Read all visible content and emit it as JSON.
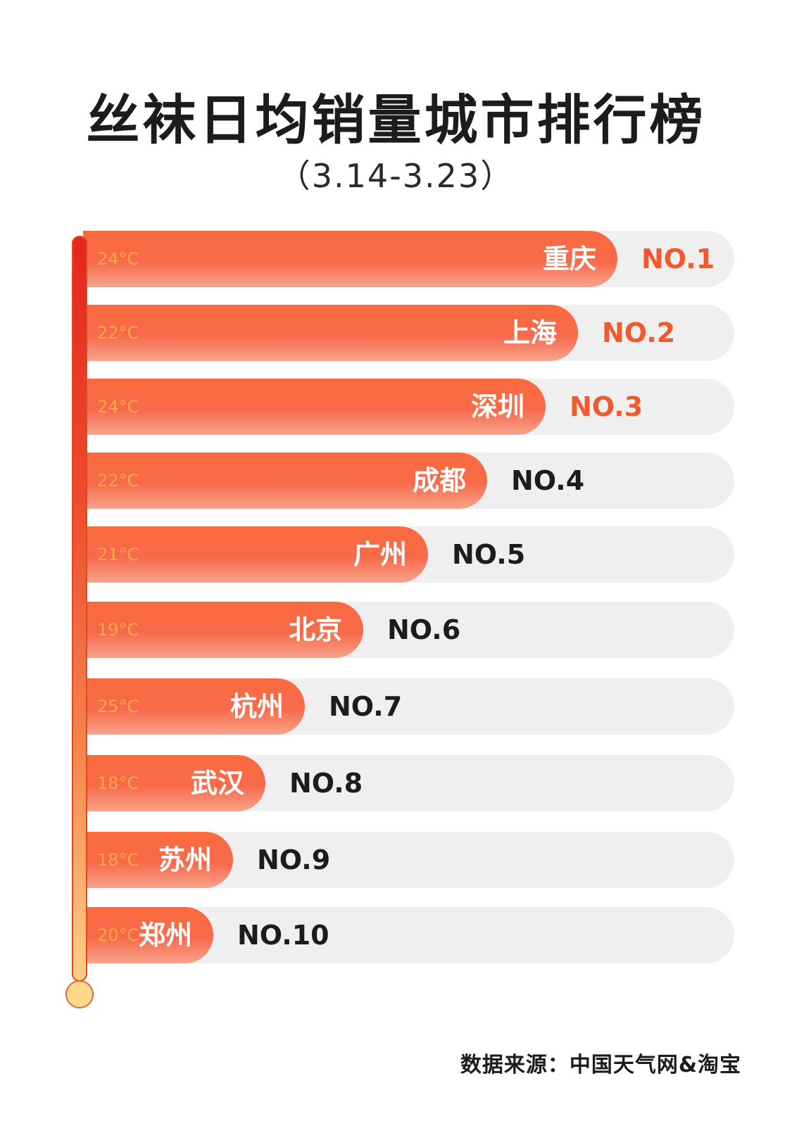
{
  "chart_data": {
    "type": "bar",
    "orientation": "horizontal",
    "title": "丝袜日均销量城市排行榜",
    "subtitle": "（3.14-3.23）",
    "categories": [
      "重庆",
      "上海",
      "深圳",
      "成都",
      "广州",
      "北京",
      "杭州",
      "武汉",
      "苏州",
      "郑州"
    ],
    "ranks": [
      "NO.1",
      "NO.2",
      "NO.3",
      "NO.4",
      "NO.5",
      "NO.6",
      "NO.7",
      "NO.8",
      "NO.9",
      "NO.10"
    ],
    "temperatures": [
      "24°C",
      "22°C",
      "24°C",
      "22°C",
      "21°C",
      "19°C",
      "25°C",
      "18°C",
      "18°C",
      "20°C"
    ],
    "values": [
      0.82,
      0.76,
      0.71,
      0.62,
      0.53,
      0.43,
      0.34,
      0.28,
      0.23,
      0.2
    ],
    "colors": {
      "fill_top": "#fa6a3d",
      "fill_bottom": "#f8a28d",
      "track": "#f0eff0",
      "rank_highlight": "#f25a2e",
      "rank_default": "#1c1c1c",
      "temperature_text": "#f9b24b"
    },
    "highlight_top_n": 3,
    "footer": "数据来源：中国天气网&淘宝"
  }
}
